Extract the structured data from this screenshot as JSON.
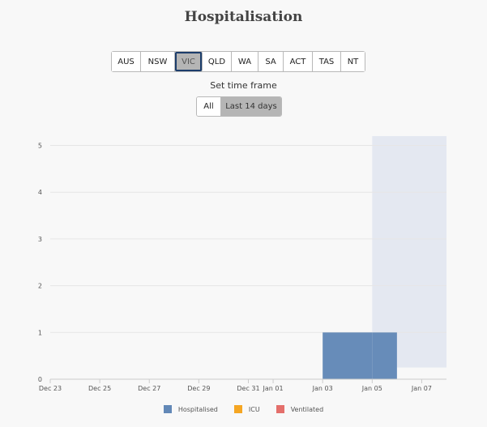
{
  "title": "Hospitalisation",
  "regions": {
    "items": [
      "AUS",
      "NSW",
      "VIC",
      "QLD",
      "WA",
      "SA",
      "ACT",
      "TAS",
      "NT"
    ],
    "selected": "VIC"
  },
  "timeframe": {
    "label": "Set time frame",
    "options": [
      "All",
      "Last 14 days"
    ],
    "selected": "Last 14 days"
  },
  "colors": {
    "hospitalised": "#6288b7",
    "icu": "#f5a623",
    "ventilated": "#e46f6b",
    "highlight": "#e4e8f1",
    "grid": "#e6e6e6",
    "axis": "#cccccc",
    "tick_text": "#555555"
  },
  "chart_data": {
    "type": "bar",
    "x_type": "date",
    "xlim": [
      "2021-12-23",
      "2022-01-08"
    ],
    "ylim": [
      0,
      5.2
    ],
    "yticks": [
      0,
      1,
      2,
      3,
      4,
      5
    ],
    "xticks": [
      {
        "date": "2021-12-23",
        "label": "Dec 23"
      },
      {
        "date": "2021-12-25",
        "label": "Dec 25"
      },
      {
        "date": "2021-12-27",
        "label": "Dec 27"
      },
      {
        "date": "2021-12-29",
        "label": "Dec 29"
      },
      {
        "date": "2021-12-31",
        "label": "Dec 31"
      },
      {
        "date": "2022-01-01",
        "label": "Jan 01"
      },
      {
        "date": "2022-01-03",
        "label": "Jan 03"
      },
      {
        "date": "2022-01-05",
        "label": "Jan 05"
      },
      {
        "date": "2022-01-07",
        "label": "Jan 07"
      }
    ],
    "highlight_range": {
      "start": "2022-01-05",
      "end": "2022-01-08"
    },
    "series": [
      {
        "name": "Hospitalised",
        "color_key": "hospitalised",
        "points": [
          {
            "start": "2022-01-03",
            "end": "2022-01-05",
            "value": 1
          },
          {
            "start": "2022-01-05",
            "end": "2022-01-06",
            "value": 1
          }
        ]
      },
      {
        "name": "ICU",
        "color_key": "icu",
        "points": []
      },
      {
        "name": "Ventilated",
        "color_key": "ventilated",
        "points": []
      }
    ],
    "legend": [
      "Hospitalised",
      "ICU",
      "Ventilated"
    ],
    "legend_position": "bottom",
    "grid": true
  }
}
